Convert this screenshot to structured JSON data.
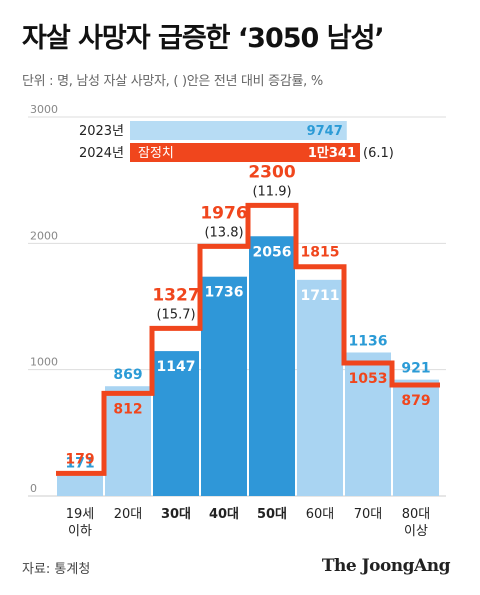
{
  "title": "자살 사망자 급증한 ‘3050 남성’",
  "unit_note": "단위 : 명, 남성 자살 사망자, ( )안은 전년 대비 증감률, %",
  "source": "자료: 통계청",
  "brand": "The JoongAng",
  "colors": {
    "bar_light": "#a9d4f2",
    "bar_dark": "#2f97d8",
    "series_2023": "#2b9bd6",
    "series_2024": "#f0461d",
    "legend_2023_fill": "#b7dcf4",
    "grid": "#dddddd",
    "axis_text": "#888888"
  },
  "chart_data": {
    "type": "bar",
    "ylim": [
      0,
      3000
    ],
    "yticks": [
      "0",
      "1000",
      "2000",
      "3000"
    ],
    "grid": true,
    "categories": [
      "19세\n이하",
      "20대",
      "30대",
      "40대",
      "50대",
      "60대",
      "70대",
      "80대\n이상"
    ],
    "bold_categories": [
      false,
      false,
      true,
      true,
      true,
      false,
      false,
      false
    ],
    "highlight": [
      false,
      false,
      true,
      true,
      true,
      false,
      false,
      false
    ],
    "series": [
      {
        "name": "2023년",
        "values": [
          171,
          869,
          1147,
          1736,
          2056,
          1711,
          1136,
          921
        ],
        "labels": [
          "171",
          "869",
          "1147",
          "1736",
          "2056",
          "1711",
          "1136",
          "921"
        ]
      },
      {
        "name": "2024년",
        "values": [
          179,
          812,
          1327,
          1976,
          2300,
          1815,
          1053,
          879
        ],
        "labels": [
          "179",
          "812",
          "1327",
          "1976",
          "2300",
          "1815",
          "1053",
          "879"
        ]
      }
    ],
    "change_pct_labels": [
      "",
      "",
      "(15.7)",
      "(13.8)",
      "(11.9)",
      "",
      "",
      ""
    ],
    "legend": [
      {
        "label": "2023년",
        "value_label": "9747",
        "value": 9747,
        "note": ""
      },
      {
        "label": "2024년",
        "value_label": "1만341",
        "value": 10341,
        "note": "잠정치",
        "change": "(6.1)"
      }
    ]
  }
}
